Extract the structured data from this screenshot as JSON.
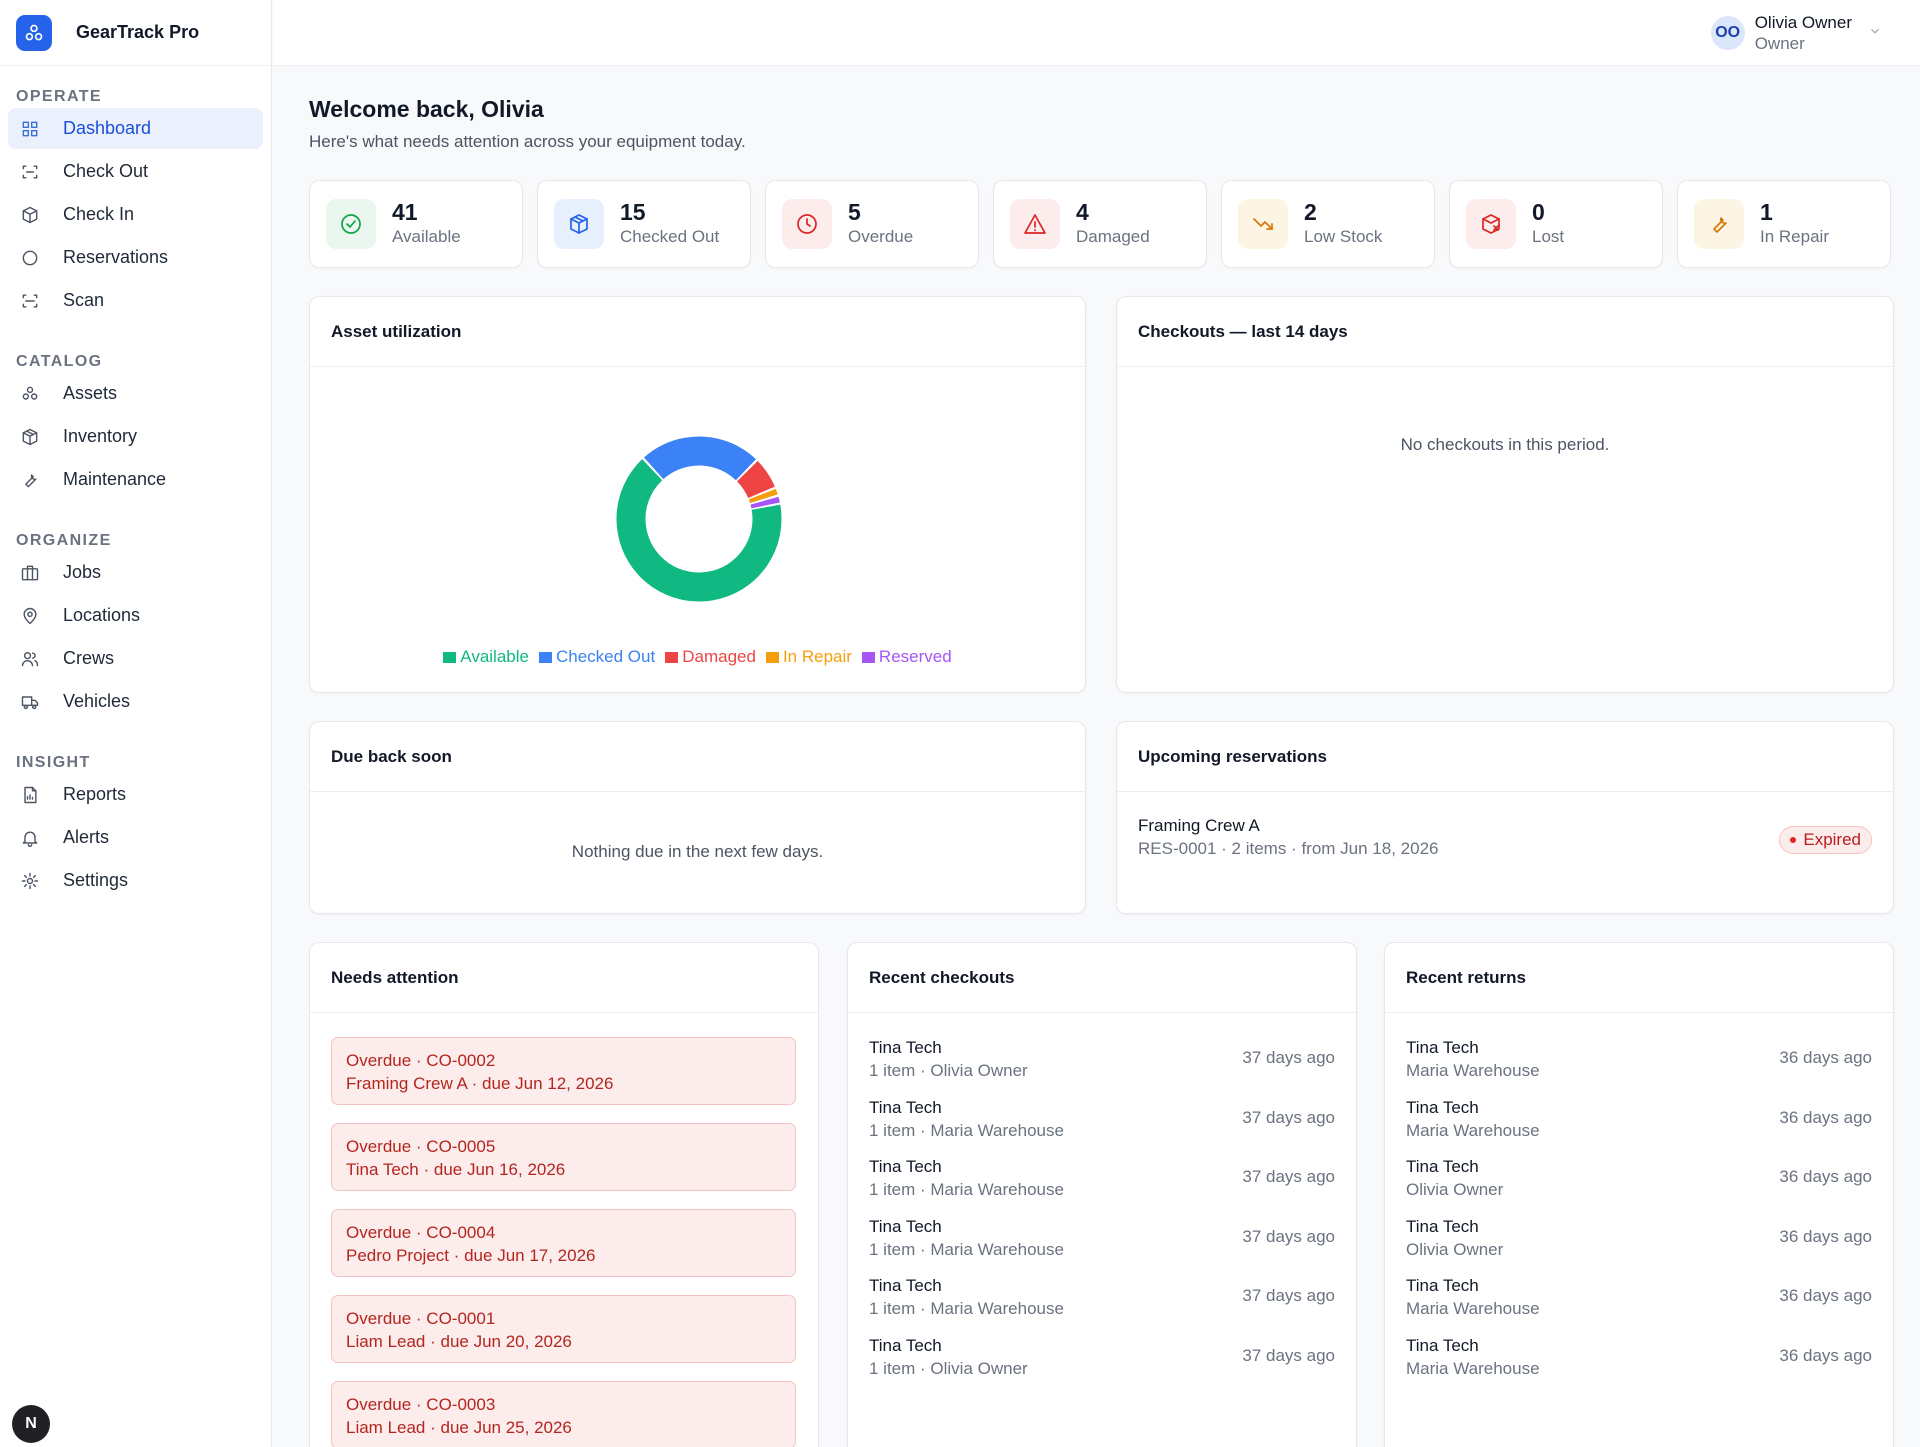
{
  "brand": {
    "name": "GearTrack Pro"
  },
  "nav": {
    "sections": [
      {
        "label": "OPERATE",
        "items": [
          {
            "label": "Dashboard",
            "icon": "grid-icon",
            "active": true
          },
          {
            "label": "Check Out",
            "icon": "scan-out-icon"
          },
          {
            "label": "Check In",
            "icon": "box-in-icon"
          },
          {
            "label": "Reservations",
            "icon": "circle-icon"
          },
          {
            "label": "Scan",
            "icon": "scan-icon"
          }
        ]
      },
      {
        "label": "CATALOG",
        "items": [
          {
            "label": "Assets",
            "icon": "boxes-icon"
          },
          {
            "label": "Inventory",
            "icon": "package-icon"
          },
          {
            "label": "Maintenance",
            "icon": "wrench-icon"
          }
        ]
      },
      {
        "label": "ORGANIZE",
        "items": [
          {
            "label": "Jobs",
            "icon": "briefcase-icon"
          },
          {
            "label": "Locations",
            "icon": "map-pin-icon"
          },
          {
            "label": "Crews",
            "icon": "users-icon"
          },
          {
            "label": "Vehicles",
            "icon": "truck-icon"
          }
        ]
      },
      {
        "label": "INSIGHT",
        "items": [
          {
            "label": "Reports",
            "icon": "file-chart-icon"
          },
          {
            "label": "Alerts",
            "icon": "bell-icon"
          },
          {
            "label": "Settings",
            "icon": "gear-icon"
          }
        ]
      }
    ]
  },
  "fab": {
    "label": "N"
  },
  "user": {
    "initials": "OO",
    "name": "Olivia Owner",
    "role": "Owner"
  },
  "page": {
    "title": "Welcome back, Olivia",
    "subtitle": "Here's what needs attention across your equipment today."
  },
  "stats": [
    {
      "value": "41",
      "label": "Available",
      "icon": "check-circle-icon",
      "color": "#16a34a",
      "bg": "#e9f7ee"
    },
    {
      "value": "15",
      "label": "Checked Out",
      "icon": "package-icon",
      "color": "#2563eb",
      "bg": "#e8f0fd"
    },
    {
      "value": "5",
      "label": "Overdue",
      "icon": "clock-icon",
      "color": "#dc2626",
      "bg": "#fdecec"
    },
    {
      "value": "4",
      "label": "Damaged",
      "icon": "warning-icon",
      "color": "#dc2626",
      "bg": "#fdecec"
    },
    {
      "value": "2",
      "label": "Low Stock",
      "icon": "trend-down-icon",
      "color": "#d97706",
      "bg": "#fdf5e3"
    },
    {
      "value": "0",
      "label": "Lost",
      "icon": "package-x-icon",
      "color": "#dc2626",
      "bg": "#fdecec"
    },
    {
      "value": "1",
      "label": "In Repair",
      "icon": "wrench-icon",
      "color": "#d97706",
      "bg": "#fdf5e3"
    }
  ],
  "utilization": {
    "title": "Asset utilization",
    "colors": {
      "Available": "#10b981",
      "Checked Out": "#3b82f6",
      "Damaged": "#ef4444",
      "In Repair": "#f59e0b",
      "Reserved": "#a855f7"
    }
  },
  "chart_data": {
    "type": "pie",
    "title": "Asset utilization",
    "categories": [
      "Available",
      "Checked Out",
      "Damaged",
      "In Repair",
      "Reserved"
    ],
    "values": [
      41,
      15,
      4,
      1,
      1
    ],
    "legend": "bottom"
  },
  "checkouts14": {
    "title": "Checkouts — last 14 days",
    "empty": "No checkouts in this period."
  },
  "dueSoon": {
    "title": "Due back soon",
    "empty": "Nothing due in the next few days."
  },
  "reservations": {
    "title": "Upcoming reservations",
    "items": [
      {
        "name": "Framing Crew A",
        "detail": "RES-0001 · 2 items · from Jun 18, 2026",
        "status": "Expired"
      }
    ]
  },
  "attention": {
    "title": "Needs attention",
    "items": [
      {
        "line1": "Overdue · CO-0002",
        "line2": "Framing Crew A · due Jun 12, 2026"
      },
      {
        "line1": "Overdue · CO-0005",
        "line2": "Tina Tech · due Jun 16, 2026"
      },
      {
        "line1": "Overdue · CO-0004",
        "line2": "Pedro Project · due Jun 17, 2026"
      },
      {
        "line1": "Overdue · CO-0001",
        "line2": "Liam Lead · due Jun 20, 2026"
      },
      {
        "line1": "Overdue · CO-0003",
        "line2": "Liam Lead · due Jun 25, 2026"
      }
    ]
  },
  "recentCheckouts": {
    "title": "Recent checkouts",
    "items": [
      {
        "name": "Tina Tech",
        "detail": "1 item · Olivia Owner",
        "time": "37 days ago"
      },
      {
        "name": "Tina Tech",
        "detail": "1 item · Maria Warehouse",
        "time": "37 days ago"
      },
      {
        "name": "Tina Tech",
        "detail": "1 item · Maria Warehouse",
        "time": "37 days ago"
      },
      {
        "name": "Tina Tech",
        "detail": "1 item · Maria Warehouse",
        "time": "37 days ago"
      },
      {
        "name": "Tina Tech",
        "detail": "1 item · Maria Warehouse",
        "time": "37 days ago"
      },
      {
        "name": "Tina Tech",
        "detail": "1 item · Olivia Owner",
        "time": "37 days ago"
      }
    ]
  },
  "recentReturns": {
    "title": "Recent returns",
    "items": [
      {
        "name": "Tina Tech",
        "detail": "Maria Warehouse",
        "time": "36 days ago"
      },
      {
        "name": "Tina Tech",
        "detail": "Maria Warehouse",
        "time": "36 days ago"
      },
      {
        "name": "Tina Tech",
        "detail": "Olivia Owner",
        "time": "36 days ago"
      },
      {
        "name": "Tina Tech",
        "detail": "Olivia Owner",
        "time": "36 days ago"
      },
      {
        "name": "Tina Tech",
        "detail": "Maria Warehouse",
        "time": "36 days ago"
      },
      {
        "name": "Tina Tech",
        "detail": "Maria Warehouse",
        "time": "36 days ago"
      }
    ]
  }
}
